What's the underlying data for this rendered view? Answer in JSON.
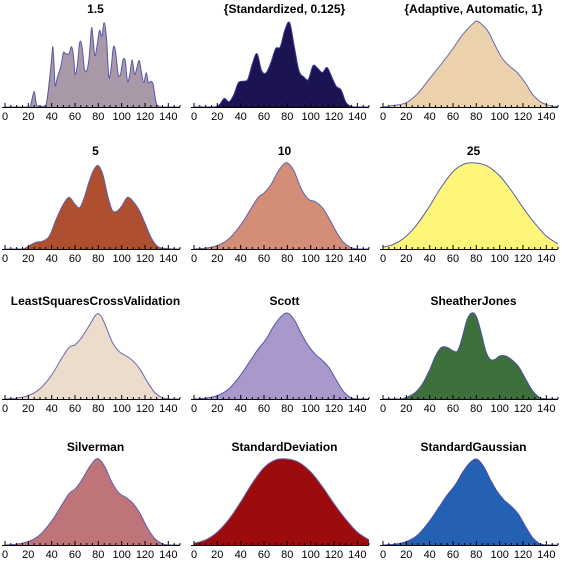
{
  "chart_data": [
    {
      "type": "area",
      "title": "1.5",
      "fill": "#a898a8",
      "stroke": "#5858a8",
      "xlim": [
        0,
        150
      ],
      "x_ticks": [
        "0",
        "20",
        "40",
        "60",
        "80",
        "100",
        "120",
        "140"
      ],
      "x": [
        0,
        10,
        20,
        22,
        25,
        27,
        30,
        35,
        38,
        40,
        41,
        42,
        43,
        45,
        48,
        50,
        52,
        55,
        57,
        59,
        60,
        62,
        64,
        66,
        68,
        70,
        72,
        74,
        75,
        77,
        79,
        81,
        83,
        85,
        87,
        89,
        91,
        93,
        95,
        97,
        99,
        101,
        103,
        105,
        107,
        109,
        111,
        113,
        115,
        117,
        119,
        121,
        123,
        125,
        127,
        130,
        135,
        140,
        150
      ],
      "y": [
        0,
        0,
        0,
        0.02,
        0.18,
        0.03,
        0.01,
        0.02,
        0.3,
        0.57,
        0.7,
        0.5,
        0.25,
        0.35,
        0.48,
        0.63,
        0.62,
        0.62,
        0.7,
        0.56,
        0.38,
        0.48,
        0.75,
        0.7,
        0.45,
        0.42,
        0.56,
        0.9,
        0.86,
        0.6,
        0.72,
        0.89,
        0.82,
        0.98,
        0.8,
        0.35,
        0.46,
        0.7,
        0.62,
        0.38,
        0.38,
        0.54,
        0.54,
        0.3,
        0.38,
        0.55,
        0.38,
        0.45,
        0.54,
        0.4,
        0.28,
        0.4,
        0.28,
        0.3,
        0.26,
        0.03,
        0,
        0,
        0
      ]
    },
    {
      "type": "area",
      "title": "{Standardized, 0.125}",
      "fill": "#1c1450",
      "stroke": "#3838a0",
      "xlim": [
        0,
        150
      ],
      "x_ticks": [
        "0",
        "20",
        "40",
        "60",
        "80",
        "100",
        "120",
        "140"
      ],
      "x": [
        0,
        10,
        18,
        22,
        26,
        30,
        34,
        38,
        42,
        46,
        50,
        54,
        58,
        62,
        66,
        70,
        74,
        78,
        82,
        86,
        90,
        94,
        98,
        102,
        106,
        110,
        114,
        118,
        122,
        126,
        130,
        134,
        140,
        150
      ],
      "y": [
        0,
        0,
        0,
        0.03,
        0.1,
        0.06,
        0.14,
        0.28,
        0.3,
        0.32,
        0.5,
        0.62,
        0.42,
        0.4,
        0.52,
        0.68,
        0.7,
        0.9,
        0.98,
        0.7,
        0.42,
        0.35,
        0.32,
        0.48,
        0.45,
        0.4,
        0.46,
        0.35,
        0.24,
        0.2,
        0.06,
        0.01,
        0,
        0
      ]
    },
    {
      "type": "area",
      "title": "{Adaptive, Automatic, 1}",
      "fill": "#ecd2ac",
      "stroke": "#6868b0",
      "xlim": [
        0,
        150
      ],
      "x_ticks": [
        "0",
        "20",
        "40",
        "60",
        "80",
        "100",
        "120",
        "140"
      ],
      "x": [
        0,
        10,
        20,
        30,
        40,
        50,
        60,
        66,
        72,
        78,
        80,
        84,
        90,
        96,
        102,
        108,
        115,
        122,
        128,
        135,
        142,
        150
      ],
      "y": [
        0,
        0.02,
        0.05,
        0.16,
        0.33,
        0.5,
        0.68,
        0.8,
        0.9,
        0.98,
        1.0,
        0.97,
        0.88,
        0.72,
        0.57,
        0.48,
        0.4,
        0.28,
        0.15,
        0.06,
        0.02,
        0
      ]
    },
    {
      "type": "area",
      "title": "5",
      "fill": "#ae5030",
      "stroke": "#6060b0",
      "xlim": [
        0,
        150
      ],
      "x_ticks": [
        "0",
        "20",
        "40",
        "60",
        "80",
        "100",
        "120",
        "140"
      ],
      "x": [
        0,
        15,
        22,
        27,
        32,
        38,
        44,
        50,
        55,
        60,
        64,
        68,
        72,
        76,
        80,
        84,
        88,
        92,
        96,
        100,
        105,
        110,
        115,
        120,
        125,
        130,
        135,
        145,
        150
      ],
      "y": [
        0,
        0,
        0.05,
        0.08,
        0.09,
        0.15,
        0.35,
        0.52,
        0.6,
        0.52,
        0.48,
        0.6,
        0.78,
        0.92,
        0.97,
        0.86,
        0.62,
        0.45,
        0.44,
        0.5,
        0.6,
        0.55,
        0.45,
        0.3,
        0.14,
        0.04,
        0.01,
        0,
        0
      ]
    },
    {
      "type": "area",
      "title": "10",
      "fill": "#d48e78",
      "stroke": "#6060b0",
      "xlim": [
        0,
        150
      ],
      "x_ticks": [
        "0",
        "20",
        "40",
        "60",
        "80",
        "100",
        "120",
        "140"
      ],
      "x": [
        0,
        10,
        20,
        30,
        40,
        48,
        55,
        60,
        66,
        72,
        78,
        82,
        86,
        92,
        98,
        104,
        110,
        116,
        122,
        128,
        134,
        140,
        150
      ],
      "y": [
        0,
        0.01,
        0.04,
        0.12,
        0.28,
        0.45,
        0.6,
        0.65,
        0.75,
        0.9,
        1.0,
        0.98,
        0.9,
        0.7,
        0.58,
        0.55,
        0.48,
        0.35,
        0.2,
        0.08,
        0.02,
        0,
        0
      ]
    },
    {
      "type": "area",
      "title": "25",
      "fill": "#fef67a",
      "stroke": "#5c5ca8",
      "xlim": [
        0,
        150
      ],
      "x_ticks": [
        "0",
        "20",
        "40",
        "60",
        "80",
        "100",
        "120",
        "140"
      ],
      "x": [
        0,
        10,
        20,
        30,
        40,
        50,
        60,
        70,
        80,
        90,
        100,
        110,
        120,
        130,
        140,
        150
      ],
      "y": [
        0.02,
        0.06,
        0.15,
        0.3,
        0.5,
        0.72,
        0.9,
        0.99,
        1.0,
        0.96,
        0.85,
        0.68,
        0.48,
        0.3,
        0.15,
        0.06
      ]
    },
    {
      "type": "area",
      "title": "LeastSquaresCrossValidation",
      "fill": "#ecdccc",
      "stroke": "#6868b0",
      "xlim": [
        0,
        150
      ],
      "x_ticks": [
        "0",
        "20",
        "40",
        "60",
        "80",
        "100",
        "120",
        "140"
      ],
      "x": [
        0,
        10,
        20,
        30,
        40,
        48,
        55,
        60,
        66,
        72,
        78,
        82,
        86,
        92,
        98,
        104,
        110,
        116,
        122,
        128,
        134,
        140,
        150
      ],
      "y": [
        0,
        0.01,
        0.04,
        0.12,
        0.28,
        0.46,
        0.6,
        0.63,
        0.72,
        0.85,
        0.98,
        0.97,
        0.86,
        0.66,
        0.55,
        0.5,
        0.44,
        0.34,
        0.2,
        0.08,
        0.02,
        0,
        0
      ]
    },
    {
      "type": "area",
      "title": "Scott",
      "fill": "#a898cc",
      "stroke": "#5858a8",
      "xlim": [
        0,
        150
      ],
      "x_ticks": [
        "0",
        "20",
        "40",
        "60",
        "80",
        "100",
        "120",
        "140"
      ],
      "x": [
        0,
        10,
        20,
        30,
        40,
        48,
        55,
        62,
        68,
        74,
        80,
        86,
        92,
        98,
        104,
        110,
        116,
        122,
        128,
        134,
        140,
        150
      ],
      "y": [
        0,
        0.01,
        0.04,
        0.12,
        0.28,
        0.44,
        0.58,
        0.7,
        0.84,
        0.95,
        1.0,
        0.92,
        0.76,
        0.62,
        0.52,
        0.45,
        0.36,
        0.22,
        0.09,
        0.02,
        0,
        0
      ]
    },
    {
      "type": "area",
      "title": "SheatherJones",
      "fill": "#3e703e",
      "stroke": "#5050a0",
      "xlim": [
        0,
        150
      ],
      "x_ticks": [
        "0",
        "20",
        "40",
        "60",
        "80",
        "100",
        "120",
        "140"
      ],
      "x": [
        0,
        15,
        22,
        28,
        34,
        40,
        45,
        50,
        55,
        60,
        64,
        68,
        72,
        76,
        80,
        84,
        88,
        92,
        96,
        100,
        105,
        110,
        116,
        122,
        128,
        134,
        140,
        150
      ],
      "y": [
        0,
        0,
        0.03,
        0.08,
        0.18,
        0.34,
        0.5,
        0.6,
        0.6,
        0.56,
        0.56,
        0.72,
        0.92,
        1.0,
        0.96,
        0.78,
        0.56,
        0.46,
        0.46,
        0.5,
        0.5,
        0.46,
        0.38,
        0.24,
        0.1,
        0.02,
        0,
        0
      ]
    },
    {
      "type": "area",
      "title": "Silverman",
      "fill": "#be7478",
      "stroke": "#6060b0",
      "xlim": [
        0,
        150
      ],
      "x_ticks": [
        "0",
        "20",
        "40",
        "60",
        "80",
        "100",
        "120",
        "140"
      ],
      "x": [
        0,
        10,
        20,
        30,
        40,
        48,
        55,
        60,
        66,
        72,
        78,
        82,
        86,
        92,
        98,
        104,
        110,
        116,
        122,
        128,
        134,
        140,
        150
      ],
      "y": [
        0,
        0.01,
        0.04,
        0.12,
        0.28,
        0.45,
        0.6,
        0.65,
        0.76,
        0.9,
        1.0,
        0.98,
        0.9,
        0.72,
        0.6,
        0.55,
        0.48,
        0.36,
        0.2,
        0.08,
        0.02,
        0,
        0
      ]
    },
    {
      "type": "area",
      "title": "StandardDeviation",
      "fill": "#9c0c0c",
      "stroke": "#6060b0",
      "xlim": [
        0,
        150
      ],
      "x_ticks": [
        "0",
        "20",
        "40",
        "60",
        "80",
        "100",
        "120",
        "140"
      ],
      "x": [
        0,
        10,
        20,
        30,
        40,
        50,
        60,
        70,
        80,
        90,
        100,
        110,
        120,
        130,
        140,
        150
      ],
      "y": [
        0.02,
        0.06,
        0.15,
        0.3,
        0.5,
        0.72,
        0.9,
        0.99,
        1.0,
        0.96,
        0.85,
        0.68,
        0.48,
        0.3,
        0.15,
        0.06
      ]
    },
    {
      "type": "area",
      "title": "StandardGaussian",
      "fill": "#2460b4",
      "stroke": "#5050a0",
      "xlim": [
        0,
        150
      ],
      "x_ticks": [
        "0",
        "20",
        "40",
        "60",
        "80",
        "100",
        "120",
        "140"
      ],
      "x": [
        0,
        10,
        20,
        30,
        40,
        48,
        55,
        62,
        68,
        74,
        80,
        86,
        92,
        98,
        104,
        110,
        116,
        122,
        128,
        134,
        140,
        150
      ],
      "y": [
        0,
        0.01,
        0.04,
        0.12,
        0.28,
        0.44,
        0.58,
        0.7,
        0.84,
        0.95,
        1.0,
        0.92,
        0.76,
        0.62,
        0.52,
        0.45,
        0.36,
        0.22,
        0.09,
        0.02,
        0,
        0
      ]
    }
  ]
}
